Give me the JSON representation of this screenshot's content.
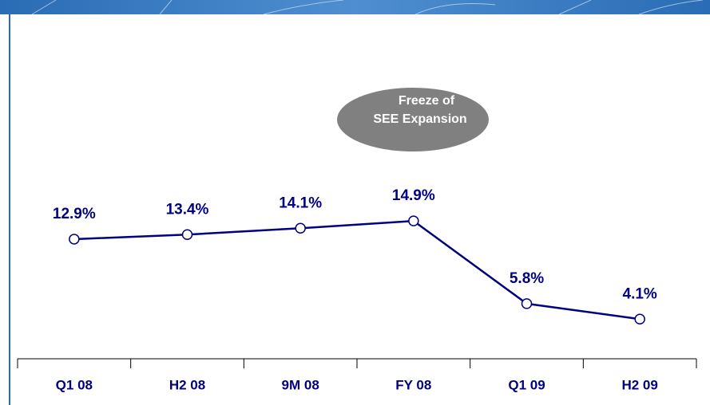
{
  "chart_data": {
    "type": "line",
    "annotation": [
      "Freeze of",
      "SEE Expansion"
    ],
    "categories": [
      "Q1 08",
      "H2 08",
      "9M 08",
      "FY 08",
      "Q1 09",
      "H2 09"
    ],
    "values": [
      12.9,
      13.4,
      14.1,
      14.9,
      5.8,
      4.1
    ],
    "value_labels": [
      "12.9%",
      "13.4%",
      "14.1%",
      "14.9%",
      "5.8%",
      "4.1%"
    ],
    "color": "#000080",
    "ylim": [
      0,
      20
    ]
  }
}
